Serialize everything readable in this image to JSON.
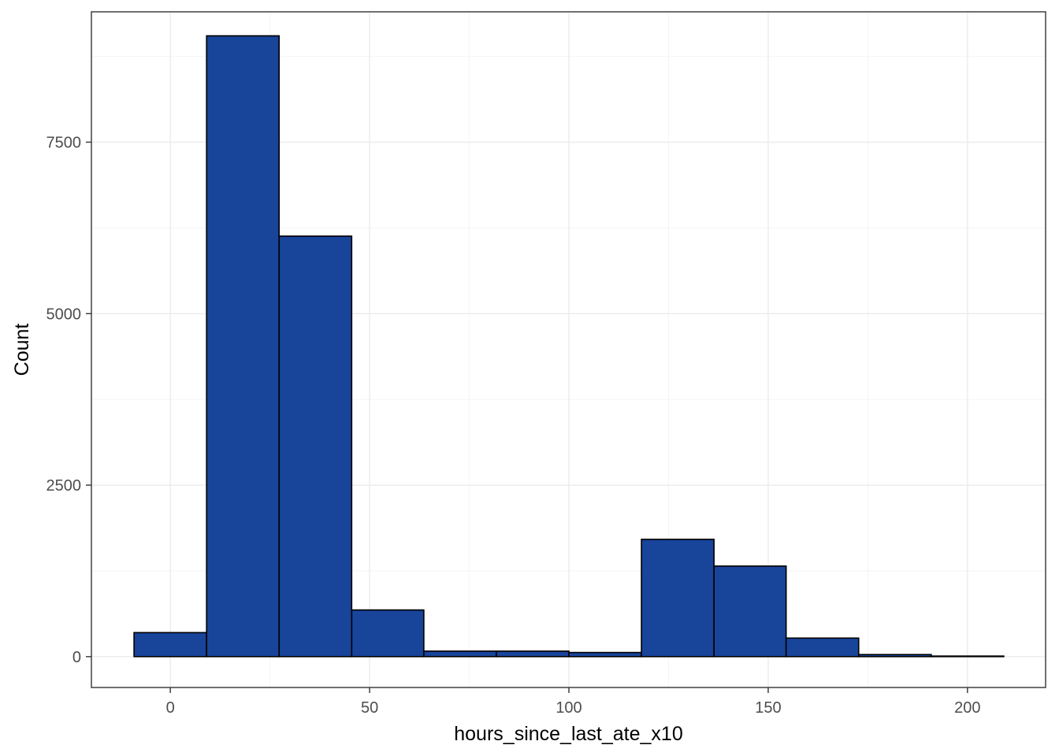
{
  "chart_data": {
    "type": "bar",
    "subtype": "histogram",
    "xlabel": "hours_since_last_ate_x10",
    "ylabel": "Count",
    "xlim": [
      -19.8,
      219.6
    ],
    "ylim": [
      -930,
      19400
    ],
    "x_ticks": [
      {
        "value": 0,
        "label": "0"
      },
      {
        "value": 50,
        "label": "50"
      },
      {
        "value": 100,
        "label": "100"
      },
      {
        "value": 150,
        "label": "150"
      },
      {
        "value": 200,
        "label": "200"
      }
    ],
    "y_ticks": [
      {
        "value": 0,
        "label": "0"
      },
      {
        "value": 2500,
        "label": "2500"
      },
      {
        "value": 5000,
        "label": "5000"
      },
      {
        "value": 7500,
        "label": "7500"
      }
    ],
    "ylim_visible": [
      -450,
      9400
    ],
    "bins": [
      {
        "x0": -9.1,
        "x1": 9.1,
        "count": 350
      },
      {
        "x0": 9.1,
        "x1": 27.3,
        "count": 9050
      },
      {
        "x0": 27.3,
        "x1": 45.5,
        "count": 6130
      },
      {
        "x0": 45.5,
        "x1": 63.6,
        "count": 680
      },
      {
        "x0": 63.6,
        "x1": 81.8,
        "count": 80
      },
      {
        "x0": 81.8,
        "x1": 100.0,
        "count": 80
      },
      {
        "x0": 100.0,
        "x1": 118.2,
        "count": 60
      },
      {
        "x0": 118.2,
        "x1": 136.4,
        "count": 1710
      },
      {
        "x0": 136.4,
        "x1": 154.5,
        "count": 1320
      },
      {
        "x0": 154.5,
        "x1": 172.7,
        "count": 270
      },
      {
        "x0": 172.7,
        "x1": 190.9,
        "count": 30
      },
      {
        "x0": 190.9,
        "x1": 209.1,
        "count": 8
      }
    ],
    "bar_fill": "#18449a",
    "bar_outline": "#000000",
    "grid": true,
    "legend": "none"
  }
}
